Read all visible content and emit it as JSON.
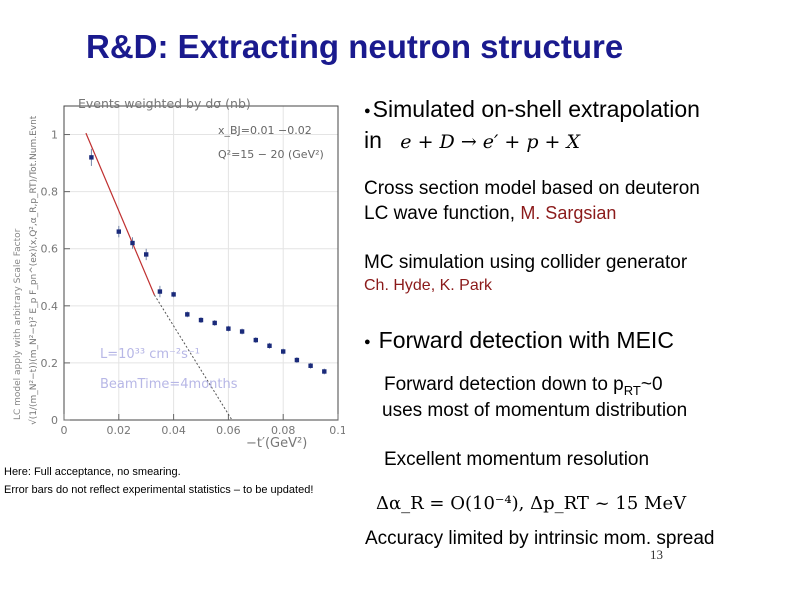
{
  "slide": {
    "title": "R&D: Extracting neutron structure",
    "page_number": "13"
  },
  "bullets": {
    "b1_line1": "Simulated on-shell extrapolation",
    "b1_line2": "in",
    "b1_formula": "e + D → e′ + p + X",
    "b1_sub1_line1": "Cross section model based on deuteron",
    "b1_sub1_line2_prefix": "LC wave function,",
    "b1_sub1_author": "M. Sargsian",
    "b1_sub2_line1": "MC simulation using collider generator",
    "b1_sub2_authors": "Ch. Hyde, K. Park",
    "b2": "Forward detection with MEIC",
    "b2_sub1_line1_prefix": "Forward detection down to p",
    "b2_sub1_line1_sub": "RT",
    "b2_sub1_line1_suffix": "~0",
    "b2_sub1_line2": "uses most of momentum distribution",
    "b2_sub2": "Excellent momentum resolution",
    "b2_sub2_formula": "Δα_R = O(10⁻⁴),  Δp_RT ~ 15 MeV",
    "b2_sub3": "Accuracy limited by intrinsic mom. spread"
  },
  "notes": {
    "line1": "Here:  Full acceptance,  no smearing.",
    "line2": "Error bars do not reflect experimental statistics – to be updated!"
  },
  "chart_data": {
    "type": "scatter",
    "title": "Events weighted by dσ (nb)",
    "info_lines": [
      "x_BJ=0.01  −0.02",
      "Q²=15 − 20 (GeV²)"
    ],
    "annotations": [
      "L=10³³ cm⁻²s⁻¹",
      "BeamTime=4months"
    ],
    "xlabel": "−t′(GeV²)",
    "ylabel": "√(1/(m_N²−t))(m_N²−t)² E_p F_pn^(ex)(x,Q²,α_R,p_RT)/Tot.Num.Evnt",
    "ylabel_left": "LC model  apply with arbitrary Scale Factor",
    "xlim": [
      0,
      0.1
    ],
    "ylim": [
      0,
      1.1
    ],
    "x_ticks": [
      0,
      0.02,
      0.04,
      0.06,
      0.08,
      0.1
    ],
    "x_tick_labels": [
      "0",
      "0.02",
      "0.04",
      "0.06",
      "0.08",
      "0.1"
    ],
    "y_ticks": [
      0,
      0.2,
      0.4,
      0.6,
      0.8,
      1
    ],
    "y_tick_labels": [
      "0",
      "0.2",
      "0.4",
      "0.6",
      "0.8",
      "1"
    ],
    "grid": true,
    "series": [
      {
        "name": "simulated points",
        "x": [
          0.01,
          0.02,
          0.025,
          0.03,
          0.035,
          0.04,
          0.045,
          0.05,
          0.055,
          0.06,
          0.065,
          0.07,
          0.075,
          0.08,
          0.085,
          0.09,
          0.095
        ],
        "y": [
          0.92,
          0.66,
          0.62,
          0.58,
          0.45,
          0.44,
          0.37,
          0.35,
          0.34,
          0.32,
          0.31,
          0.28,
          0.26,
          0.24,
          0.21,
          0.19,
          0.17
        ],
        "yerr": [
          0.03,
          0.02,
          0.02,
          0.02,
          0.02,
          0.01,
          0.01,
          0.01,
          0.01,
          0.01,
          0.01,
          0.01,
          0.01,
          0.01,
          0.01,
          0.01,
          0.01
        ]
      },
      {
        "name": "fit (solid)",
        "x": [
          0.008,
          0.033
        ],
        "y": [
          1.005,
          0.438
        ]
      },
      {
        "name": "extrapolation (dotted)",
        "x": [
          0.033,
          0.0613
        ],
        "y": [
          0.438,
          0.0
        ]
      }
    ],
    "colors": {
      "points": "#1a2a7a",
      "fit": "#c03030",
      "extrap": "#555555",
      "grid": "#e4e4e4",
      "annot": "#b7b7e6"
    }
  }
}
